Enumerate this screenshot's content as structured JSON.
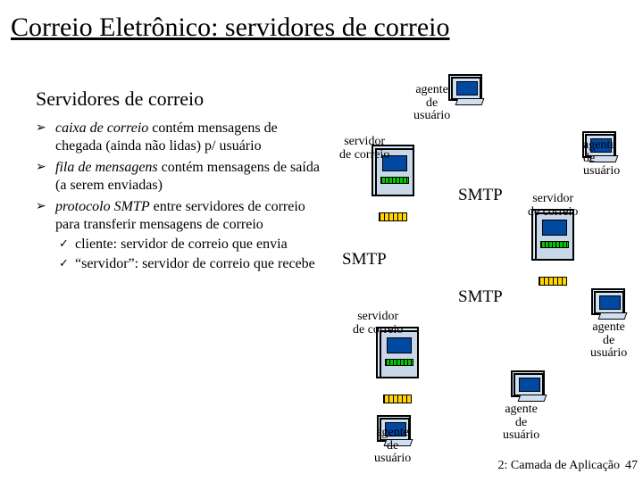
{
  "title": "Correio Eletrônico: servidores de correio",
  "subheading": "Servidores de correio",
  "bullets": [
    {
      "html": "<i>caixa de correio</i> contém mensagens de chegada (ainda não lidas) p/ usuário"
    },
    {
      "html": "<i>fila de mensagens</i> contém mensagens de saída (a serem enviadas)"
    },
    {
      "html": "<i>protocolo SMTP</i> entre servidores de correio para transferir mensagens de correio",
      "sub": [
        "cliente: servidor de correio que envia",
        "“servidor”: servidor de correio que recebe"
      ]
    }
  ],
  "diagram": {
    "labels": {
      "agente_top": "agente\nde\nusuário",
      "agente_right1": "agente\nde\nusuário",
      "agente_right2": "agente\nde\nusuário",
      "agente_bottom_r": "agente\nde\nusuário",
      "agente_bottom": "agente\nde\nusuário",
      "servidor_top": "servidor\nde correio",
      "servidor_right": "servidor\nde correio",
      "servidor_bottom": "servidor\nde correio"
    },
    "smtp": [
      "SMTP",
      "SMTP",
      "SMTP"
    ],
    "colors": {
      "server_body": "#c8d8e8",
      "server_screen": "#0048a0",
      "green": "#00c800",
      "yellow": "#ffd400"
    }
  },
  "footer": {
    "chapter": "2: Camada de Aplicação",
    "page": "47"
  }
}
